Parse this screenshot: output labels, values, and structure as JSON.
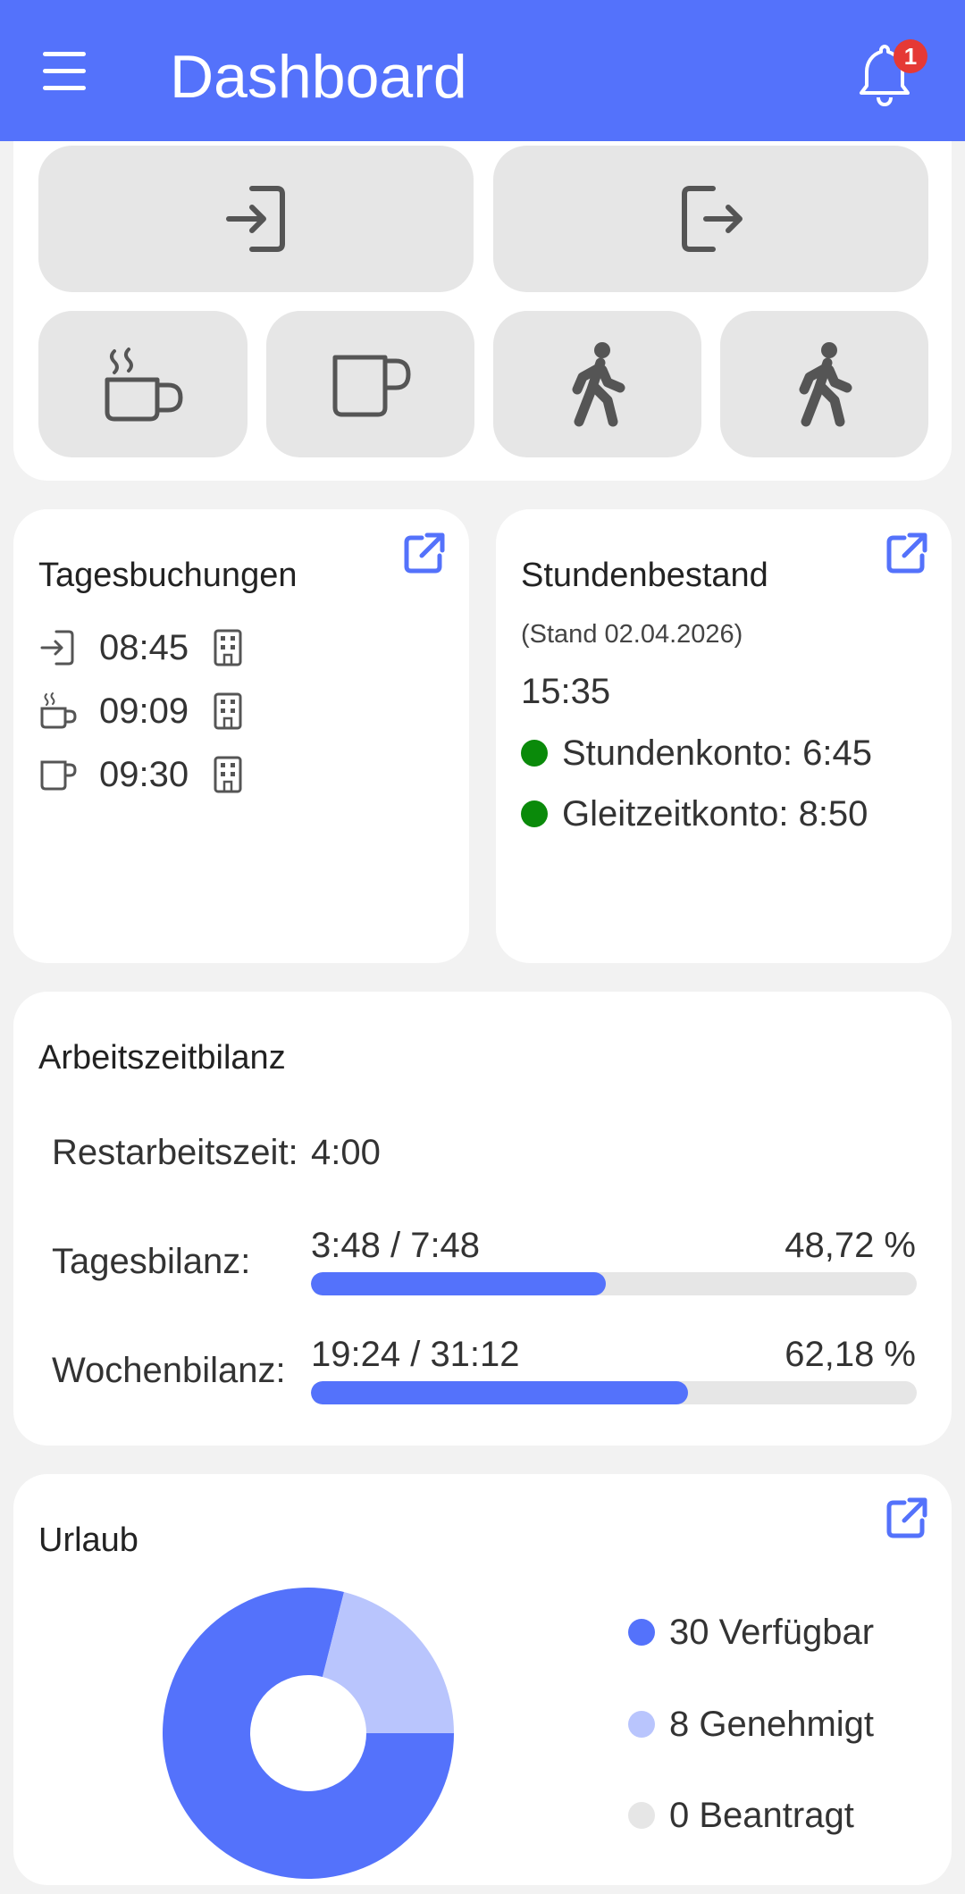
{
  "appbar": {
    "title": "Dashboard",
    "notification_count": "1",
    "color": "#5472fb"
  },
  "quick_actions": {
    "buttons": [
      {
        "icon": "login-icon"
      },
      {
        "icon": "logout-icon"
      },
      {
        "icon": "hot-coffee-icon"
      },
      {
        "icon": "cup-icon"
      },
      {
        "icon": "walking-person-icon"
      },
      {
        "icon": "walking-person-icon"
      }
    ]
  },
  "tagesbuchungen": {
    "title": "Tagesbuchungen",
    "entries": [
      {
        "icon": "login-icon",
        "time": "08:45",
        "location_icon": "building-icon"
      },
      {
        "icon": "hot-coffee-icon",
        "time": "09:09",
        "location_icon": "building-icon"
      },
      {
        "icon": "cup-icon",
        "time": "09:30",
        "location_icon": "building-icon"
      }
    ]
  },
  "stundenbestand": {
    "title": "Stundenbestand",
    "stand": "(Stand 02.04.2026)",
    "total": "15:35",
    "stundenkonto": "Stundenkonto: 6:45",
    "gleitzeitkonto": "Gleitzeitkonto: 8:50",
    "status_color": "#0a8a0a"
  },
  "arbeitszeitbilanz": {
    "title": "Arbeitszeitbilanz",
    "restarbeitszeit_label": "Restarbeitszeit:",
    "restarbeitszeit_value": "4:00",
    "tagesbilanz_label": "Tagesbilanz:",
    "tagesbilanz_value": "3:48 / 7:48",
    "tagesbilanz_percent": "48,72 %",
    "tagesbilanz_fraction": 0.4872,
    "wochenbilanz_label": "Wochenbilanz:",
    "wochenbilanz_value": "19:24 / 31:12",
    "wochenbilanz_percent": "62,18 %",
    "wochenbilanz_fraction": 0.6218
  },
  "urlaub": {
    "title": "Urlaub",
    "legend": [
      {
        "label": "30 Verfügbar",
        "color": "#5472fb"
      },
      {
        "label": "8 Genehmigt",
        "color": "#b9c5fd"
      },
      {
        "label": "0 Beantragt",
        "color": "#e6e6e6"
      }
    ]
  },
  "chart_data": {
    "type": "pie",
    "title": "Urlaub",
    "categories": [
      "Verfügbar",
      "Genehmigt",
      "Beantragt"
    ],
    "values": [
      30,
      8,
      0
    ],
    "colors": [
      "#5472fb",
      "#b9c5fd",
      "#e6e6e6"
    ]
  }
}
